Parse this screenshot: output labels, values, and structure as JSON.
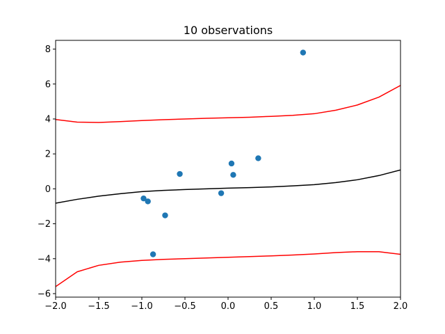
{
  "chart_data": {
    "type": "scatter",
    "title": "10 observations",
    "xlabel": "",
    "ylabel": "",
    "xlim": [
      -2.0,
      2.0
    ],
    "ylim": [
      -6.2,
      8.5
    ],
    "x_ticks": [
      -2.0,
      -1.5,
      -1.0,
      -0.5,
      0.0,
      0.5,
      1.0,
      1.5,
      2.0
    ],
    "x_tick_labels": [
      "−2.0",
      "−1.5",
      "−1.0",
      "−0.5",
      "0.0",
      "0.5",
      "1.0",
      "1.5",
      "2.0"
    ],
    "y_ticks": [
      -6,
      -4,
      -2,
      0,
      2,
      4,
      6,
      8
    ],
    "y_tick_labels": [
      "−6",
      "−4",
      "−2",
      "0",
      "2",
      "4",
      "6",
      "8"
    ],
    "grid": false,
    "points": {
      "color": "#1f77b4",
      "x": [
        -0.98,
        -0.93,
        -0.87,
        -0.73,
        -0.56,
        -0.08,
        0.04,
        0.06,
        0.35,
        0.87
      ],
      "y": [
        -0.55,
        -0.72,
        -3.75,
        -1.52,
        0.85,
        -0.25,
        1.45,
        0.8,
        1.75,
        7.8
      ]
    },
    "lines": [
      {
        "color": "#000000",
        "x": [
          -2.0,
          -1.75,
          -1.5,
          -1.25,
          -1.0,
          -0.75,
          -0.5,
          -0.25,
          0.0,
          0.25,
          0.5,
          0.75,
          1.0,
          1.25,
          1.5,
          1.75,
          2.0
        ],
        "y": [
          -0.82,
          -0.6,
          -0.42,
          -0.28,
          -0.16,
          -0.09,
          -0.04,
          0.0,
          0.04,
          0.07,
          0.11,
          0.17,
          0.24,
          0.36,
          0.52,
          0.76,
          1.08
        ]
      },
      {
        "color": "#ff0000",
        "x": [
          -2.0,
          -1.75,
          -1.5,
          -1.25,
          -1.0,
          -0.75,
          -0.5,
          -0.25,
          0.0,
          0.25,
          0.5,
          0.75,
          1.0,
          1.25,
          1.5,
          1.75,
          2.0
        ],
        "y": [
          3.97,
          3.82,
          3.8,
          3.85,
          3.91,
          3.96,
          4.0,
          4.04,
          4.07,
          4.1,
          4.15,
          4.21,
          4.3,
          4.5,
          4.8,
          5.25,
          5.92
        ]
      },
      {
        "color": "#ff0000",
        "x": [
          -2.0,
          -1.75,
          -1.5,
          -1.25,
          -1.0,
          -0.75,
          -0.5,
          -0.25,
          0.0,
          0.25,
          0.5,
          0.75,
          1.0,
          1.25,
          1.5,
          1.75,
          2.0
        ],
        "y": [
          -5.6,
          -4.75,
          -4.38,
          -4.2,
          -4.1,
          -4.04,
          -4.0,
          -3.96,
          -3.92,
          -3.88,
          -3.84,
          -3.79,
          -3.73,
          -3.65,
          -3.6,
          -3.6,
          -3.75
        ]
      }
    ]
  }
}
